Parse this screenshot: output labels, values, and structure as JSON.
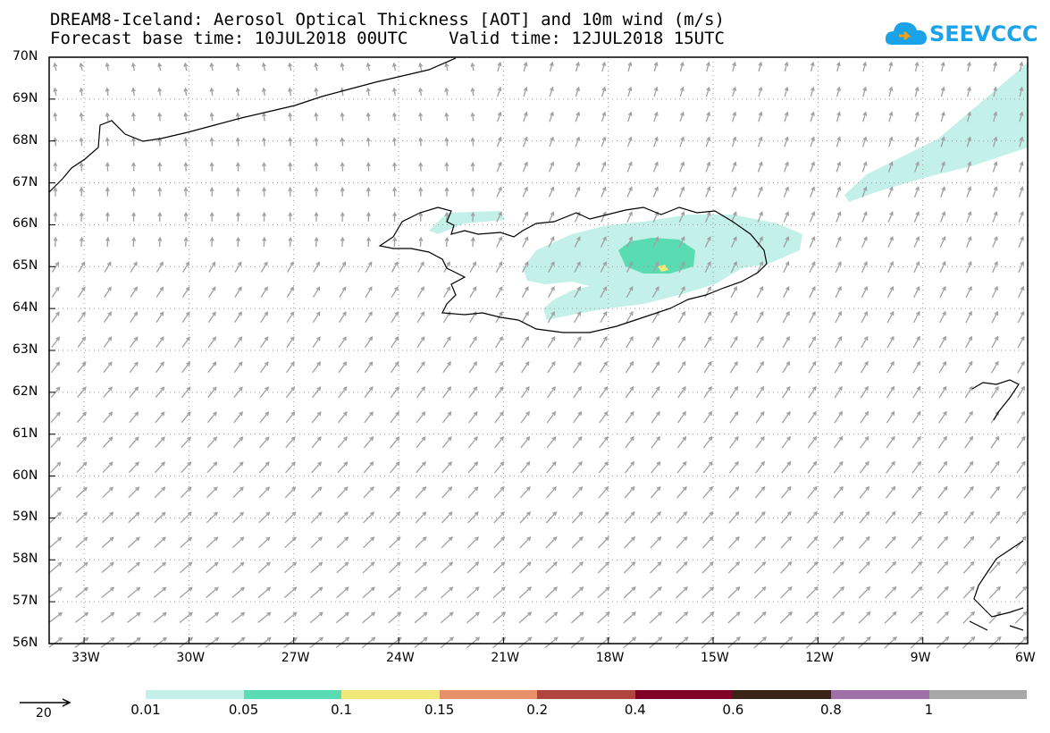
{
  "title": {
    "line1": "DREAM8-Iceland: Aerosol Optical Thickness [AOT] and 10m wind (m/s)",
    "line2": "Forecast base time: 10JUL2018 00UTC    Valid time: 12JUL2018 15UTC"
  },
  "logo": {
    "text": "SEEVCCC",
    "color": "#1aa3e8"
  },
  "map": {
    "lat_labels": [
      "70N",
      "69N",
      "68N",
      "67N",
      "66N",
      "65N",
      "64N",
      "63N",
      "62N",
      "61N",
      "60N",
      "59N",
      "58N",
      "57N",
      "56N"
    ],
    "lon_labels": [
      "33W",
      "30W",
      "27W",
      "24W",
      "21W",
      "18W",
      "15W",
      "12W",
      "9W",
      "6W"
    ],
    "lat_range": [
      56,
      70
    ],
    "lon_range": [
      -34,
      -6
    ],
    "wind_arrow_color": "#a0a0a0",
    "coastline_color": "#000000",
    "grid": "dotted"
  },
  "legend": {
    "reference_vector_label": "20",
    "levels": [
      "0.01",
      "0.05",
      "0.1",
      "0.15",
      "0.2",
      "0.4",
      "0.6",
      "0.8",
      "1"
    ],
    "colors": [
      "#c4f0ea",
      "#5adcb2",
      "#f0e878",
      "#e8906a",
      "#b0453e",
      "#800028",
      "#3a2418",
      "#9f70a8",
      "#a8a8a8"
    ]
  }
}
